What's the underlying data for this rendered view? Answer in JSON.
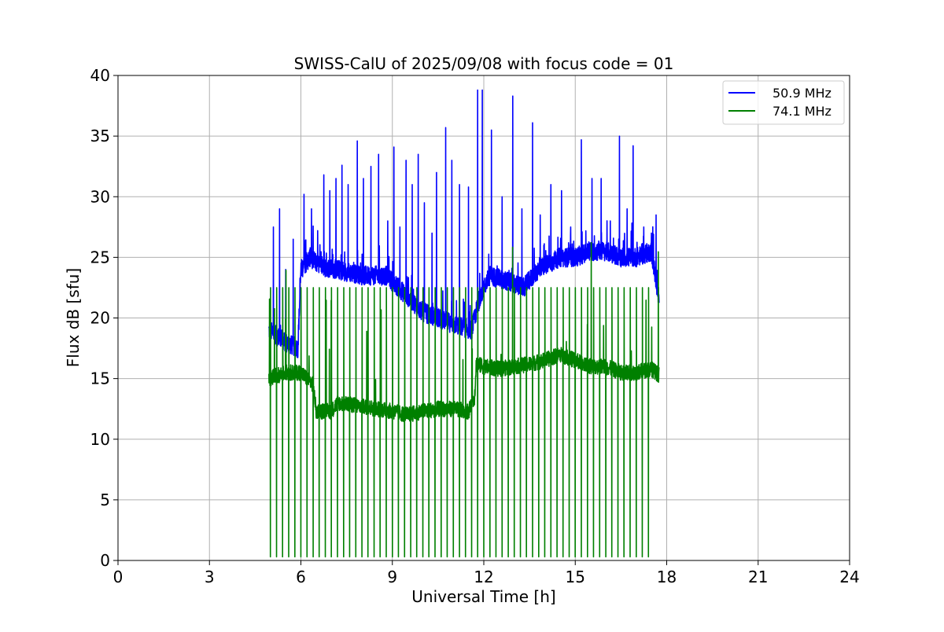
{
  "chart_data": {
    "type": "line",
    "title": "SWISS-CalU of 2025/09/08 with focus code = 01",
    "xlabel": "Universal Time [h]",
    "ylabel": "Flux dB [sfu]",
    "xlim": [
      0,
      24
    ],
    "ylim": [
      0,
      40
    ],
    "xticks": [
      0,
      3,
      6,
      9,
      12,
      15,
      18,
      21,
      24
    ],
    "yticks": [
      0,
      5,
      10,
      15,
      20,
      25,
      30,
      35,
      40
    ],
    "xtick_labels": [
      "0",
      "3",
      "6",
      "9",
      "12",
      "15",
      "18",
      "21",
      "24"
    ],
    "ytick_labels": [
      "0",
      "5",
      "10",
      "15",
      "20",
      "25",
      "30",
      "35",
      "40"
    ],
    "grid": true,
    "legend_position": "top-right",
    "data_window_hours": [
      4.95,
      17.75
    ],
    "series": [
      {
        "name": "50.9 MHz",
        "color": "#0000ff",
        "baseline_profile": {
          "x": [
            4.95,
            5.5,
            5.9,
            6.0,
            6.3,
            6.7,
            7.2,
            8.0,
            8.8,
            9.2,
            9.6,
            10.0,
            10.5,
            11.0,
            11.6,
            11.9,
            12.2,
            12.8,
            13.3,
            13.8,
            14.5,
            15.0,
            15.5,
            16.0,
            16.5,
            17.0,
            17.5,
            17.75
          ],
          "y": [
            19.0,
            18.0,
            17.5,
            24.0,
            25.0,
            24.2,
            24.0,
            23.5,
            23.5,
            22.5,
            21.5,
            20.5,
            20.0,
            19.5,
            19.0,
            22.0,
            23.5,
            23.0,
            22.5,
            24.0,
            25.0,
            25.0,
            25.5,
            25.5,
            25.0,
            25.0,
            25.5,
            21.5
          ]
        },
        "spikes": {
          "x": [
            5.1,
            5.3,
            5.5,
            5.75,
            6.1,
            6.35,
            6.55,
            6.75,
            6.95,
            7.15,
            7.35,
            7.55,
            7.85,
            8.05,
            8.3,
            8.55,
            8.85,
            9.05,
            9.25,
            9.45,
            9.65,
            9.85,
            10.05,
            10.3,
            10.45,
            10.75,
            10.95,
            11.2,
            11.5,
            11.8,
            11.95,
            12.25,
            12.6,
            12.95,
            13.25,
            13.6,
            13.85,
            14.2,
            14.55,
            14.85,
            15.2,
            15.55,
            15.85,
            16.15,
            16.45,
            16.7,
            16.9,
            17.25,
            17.5,
            17.65
          ],
          "y": [
            27.5,
            29.0,
            24.0,
            26.5,
            30.2,
            29.0,
            27.2,
            31.8,
            30.5,
            31.5,
            32.6,
            31.0,
            34.6,
            31.5,
            32.5,
            33.5,
            28.0,
            34.1,
            27.5,
            33.0,
            31.0,
            33.5,
            29.5,
            27.0,
            32.0,
            35.7,
            33.0,
            31.0,
            30.8,
            38.8,
            38.8,
            35.5,
            30.0,
            38.3,
            29.0,
            36.1,
            28.5,
            31.0,
            30.5,
            27.5,
            34.7,
            31.5,
            31.5,
            28.0,
            35.0,
            29.0,
            34.2,
            27.5,
            27.0,
            28.5
          ]
        }
      },
      {
        "name": "74.1 MHz",
        "color": "#008000",
        "baseline_profile": {
          "x": [
            4.95,
            5.5,
            6.0,
            6.4,
            6.5,
            7.0,
            7.2,
            7.8,
            8.5,
            9.0,
            9.5,
            10.0,
            10.5,
            11.0,
            11.5,
            11.7,
            11.75,
            12.0,
            12.5,
            13.0,
            13.5,
            14.0,
            14.5,
            15.0,
            15.5,
            16.0,
            16.5,
            17.0,
            17.5,
            17.75
          ],
          "y": [
            15.0,
            15.5,
            15.5,
            14.5,
            12.3,
            12.3,
            13.0,
            12.8,
            12.5,
            12.3,
            12.0,
            12.3,
            12.5,
            12.5,
            12.3,
            13.5,
            16.2,
            16.0,
            15.8,
            16.0,
            16.2,
            16.5,
            17.0,
            16.5,
            16.0,
            16.0,
            15.5,
            15.5,
            15.8,
            15.3
          ]
        },
        "dropouts": {
          "x_start": 5.0,
          "x_end": 17.45,
          "interval_hours": 0.2,
          "min_value": 0.3
        },
        "spike_level": 22.5
      }
    ]
  }
}
